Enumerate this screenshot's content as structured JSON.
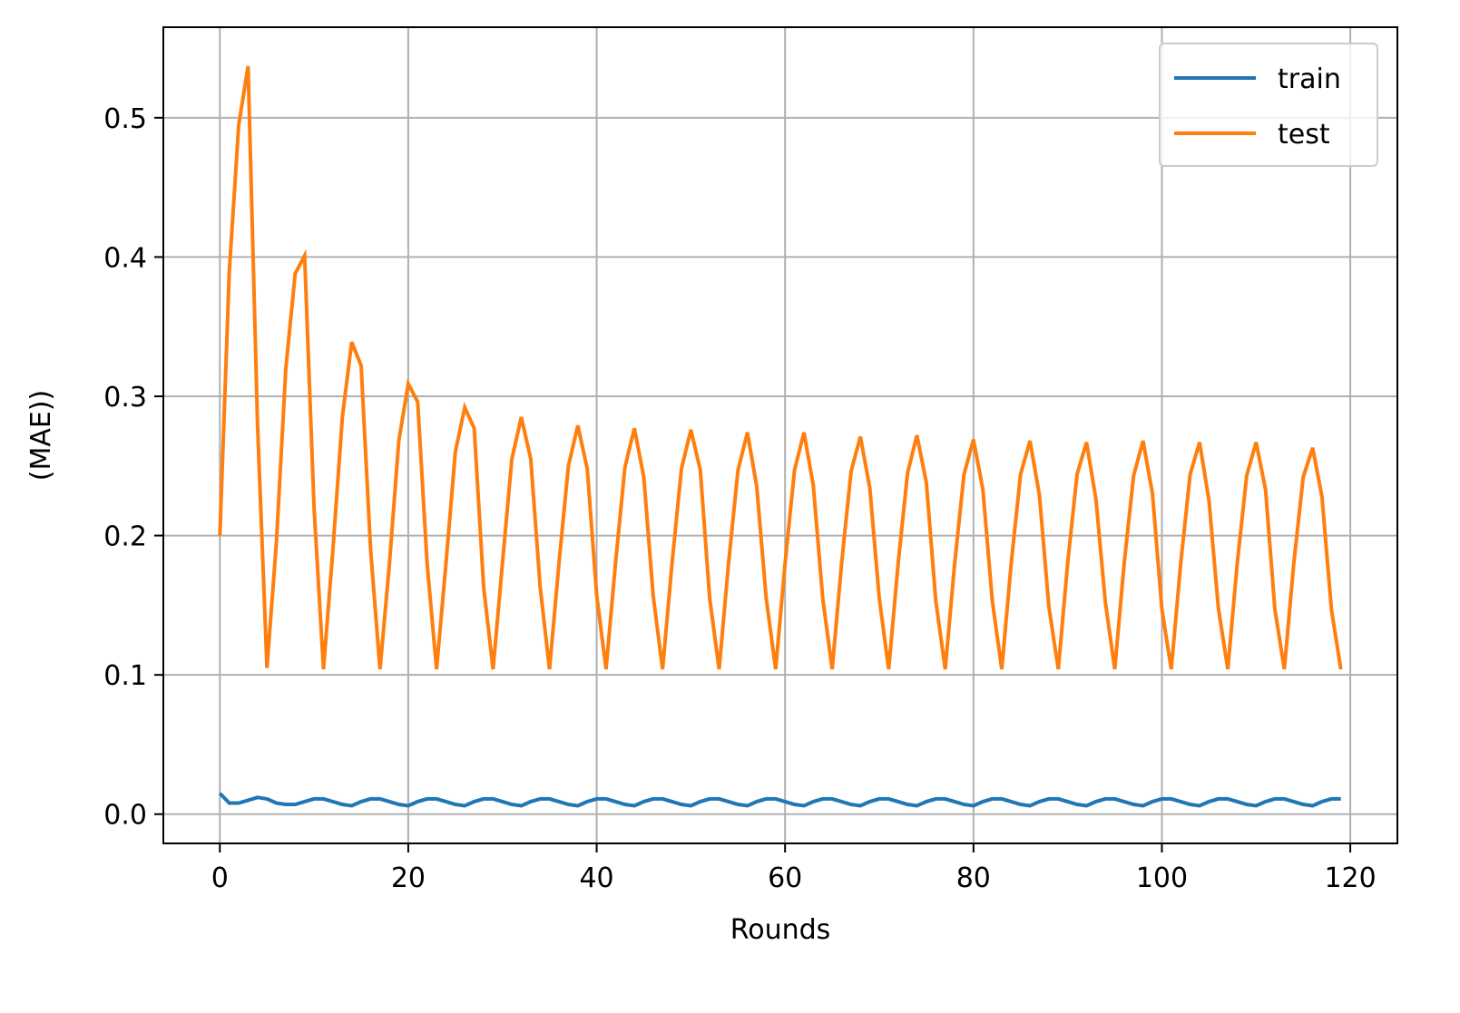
{
  "chart_data": {
    "type": "line",
    "title": "",
    "xlabel": "Rounds",
    "ylabel": "(MAE))",
    "xlim": [
      -6,
      125
    ],
    "ylim": [
      -0.021,
      0.565
    ],
    "x_ticks": [
      0,
      20,
      40,
      60,
      80,
      100,
      120
    ],
    "y_ticks": [
      0.0,
      0.1,
      0.2,
      0.3,
      0.4,
      0.5
    ],
    "x_tick_labels": [
      "0",
      "20",
      "40",
      "60",
      "80",
      "100",
      "120"
    ],
    "y_tick_labels": [
      "0.0",
      "0.1",
      "0.2",
      "0.3",
      "0.4",
      "0.5"
    ],
    "grid": true,
    "legend_position": "top-right",
    "series": [
      {
        "name": "train",
        "color": "#1f77b4",
        "x": [
          0,
          1,
          2,
          3,
          4,
          5,
          6,
          7,
          8,
          9,
          10,
          11,
          12,
          13,
          14,
          15,
          16,
          17,
          18,
          19,
          20,
          21,
          22,
          23,
          24,
          25,
          26,
          27,
          28,
          29,
          30,
          31,
          32,
          33,
          34,
          35,
          36,
          37,
          38,
          39,
          40,
          41,
          42,
          43,
          44,
          45,
          46,
          47,
          48,
          49,
          50,
          51,
          52,
          53,
          54,
          55,
          56,
          57,
          58,
          59,
          60,
          61,
          62,
          63,
          64,
          65,
          66,
          67,
          68,
          69,
          70,
          71,
          72,
          73,
          74,
          75,
          76,
          77,
          78,
          79,
          80,
          81,
          82,
          83,
          84,
          85,
          86,
          87,
          88,
          89,
          90,
          91,
          92,
          93,
          94,
          95,
          96,
          97,
          98,
          99,
          100,
          101,
          102,
          103,
          104,
          105,
          106,
          107,
          108,
          109,
          110,
          111,
          112,
          113,
          114,
          115,
          116,
          117,
          118,
          119
        ],
        "values": [
          0.015,
          0.008,
          0.008,
          0.01,
          0.012,
          0.011,
          0.008,
          0.007,
          0.007,
          0.009,
          0.011,
          0.011,
          0.009,
          0.007,
          0.006,
          0.009,
          0.011,
          0.011,
          0.009,
          0.007,
          0.006,
          0.009,
          0.011,
          0.011,
          0.009,
          0.007,
          0.006,
          0.009,
          0.011,
          0.011,
          0.009,
          0.007,
          0.006,
          0.009,
          0.011,
          0.011,
          0.009,
          0.007,
          0.006,
          0.009,
          0.011,
          0.011,
          0.009,
          0.007,
          0.006,
          0.009,
          0.011,
          0.011,
          0.009,
          0.007,
          0.006,
          0.009,
          0.011,
          0.011,
          0.009,
          0.007,
          0.006,
          0.009,
          0.011,
          0.011,
          0.009,
          0.007,
          0.006,
          0.009,
          0.011,
          0.011,
          0.009,
          0.007,
          0.006,
          0.009,
          0.011,
          0.011,
          0.009,
          0.007,
          0.006,
          0.009,
          0.011,
          0.011,
          0.009,
          0.007,
          0.006,
          0.009,
          0.011,
          0.011,
          0.009,
          0.007,
          0.006,
          0.009,
          0.011,
          0.011,
          0.009,
          0.007,
          0.006,
          0.009,
          0.011,
          0.011,
          0.009,
          0.007,
          0.006,
          0.009,
          0.011,
          0.011,
          0.009,
          0.007,
          0.006,
          0.009,
          0.011,
          0.011,
          0.009,
          0.007,
          0.006,
          0.009,
          0.011,
          0.011,
          0.009,
          0.007,
          0.006,
          0.009,
          0.011,
          0.011
        ]
      },
      {
        "name": "test",
        "color": "#ff7f0e",
        "x": [
          0,
          1,
          2,
          3,
          4,
          5,
          6,
          7,
          8,
          9,
          10,
          11,
          12,
          13,
          14,
          15,
          16,
          17,
          18,
          19,
          20,
          21,
          22,
          23,
          24,
          25,
          26,
          27,
          28,
          29,
          30,
          31,
          32,
          33,
          34,
          35,
          36,
          37,
          38,
          39,
          40,
          41,
          42,
          43,
          44,
          45,
          46,
          47,
          48,
          49,
          50,
          51,
          52,
          53,
          54,
          55,
          56,
          57,
          58,
          59,
          60,
          61,
          62,
          63,
          64,
          65,
          66,
          67,
          68,
          69,
          70,
          71,
          72,
          73,
          74,
          75,
          76,
          77,
          78,
          79,
          80,
          81,
          82,
          83,
          84,
          85,
          86,
          87,
          88,
          89,
          90,
          91,
          92,
          93,
          94,
          95,
          96,
          97,
          98,
          99,
          100,
          101,
          102,
          103,
          104,
          105,
          106,
          107,
          108,
          109,
          110,
          111,
          112,
          113,
          114,
          115,
          116,
          117,
          118,
          119
        ],
        "values": [
          0.2,
          0.39,
          0.495,
          0.537,
          0.28,
          0.105,
          0.195,
          0.32,
          0.388,
          0.401,
          0.22,
          0.104,
          0.19,
          0.285,
          0.339,
          0.322,
          0.19,
          0.104,
          0.18,
          0.268,
          0.309,
          0.296,
          0.18,
          0.104,
          0.18,
          0.26,
          0.292,
          0.277,
          0.163,
          0.104,
          0.18,
          0.255,
          0.285,
          0.255,
          0.163,
          0.104,
          0.18,
          0.25,
          0.279,
          0.248,
          0.157,
          0.104,
          0.18,
          0.249,
          0.277,
          0.242,
          0.157,
          0.104,
          0.18,
          0.248,
          0.276,
          0.247,
          0.155,
          0.104,
          0.18,
          0.247,
          0.274,
          0.235,
          0.155,
          0.104,
          0.18,
          0.247,
          0.274,
          0.236,
          0.155,
          0.104,
          0.18,
          0.246,
          0.271,
          0.234,
          0.155,
          0.104,
          0.18,
          0.245,
          0.272,
          0.238,
          0.153,
          0.104,
          0.18,
          0.244,
          0.269,
          0.233,
          0.153,
          0.104,
          0.18,
          0.244,
          0.268,
          0.229,
          0.149,
          0.104,
          0.18,
          0.244,
          0.267,
          0.226,
          0.152,
          0.104,
          0.18,
          0.243,
          0.268,
          0.23,
          0.147,
          0.104,
          0.18,
          0.244,
          0.267,
          0.225,
          0.148,
          0.104,
          0.18,
          0.243,
          0.267,
          0.233,
          0.147,
          0.104,
          0.18,
          0.242,
          0.263,
          0.228,
          0.147,
          0.104
        ]
      }
    ]
  }
}
